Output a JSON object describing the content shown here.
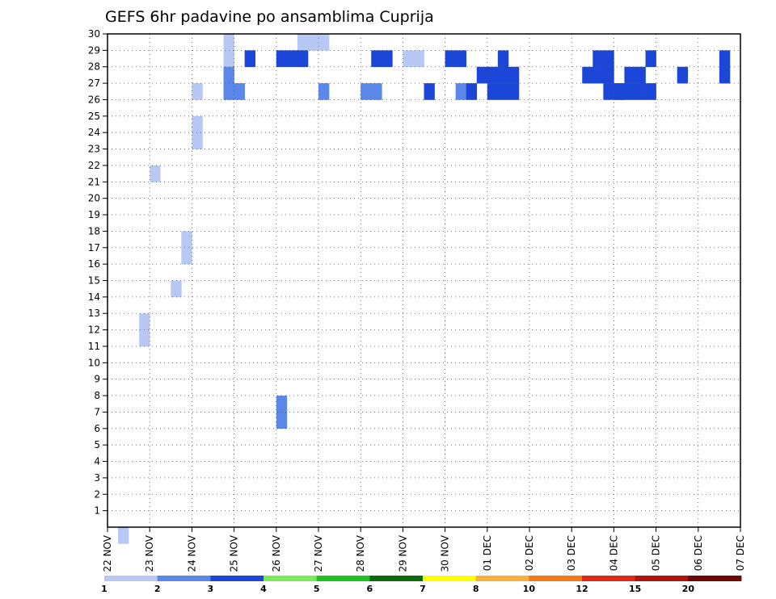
{
  "chart_data": {
    "type": "heatmap",
    "title": "GEFS 6hr padavine po ansamblima Cuprija",
    "xlabel": "",
    "ylabel": "",
    "x_tick_labels": [
      "22 NOV",
      "23 NOV",
      "24 NOV",
      "25 NOV",
      "26 NOV",
      "27 NOV",
      "28 NOV",
      "29 NOV",
      "30 NOV",
      "01 DEC",
      "02 DEC",
      "03 DEC",
      "04 DEC",
      "05 DEC",
      "06 DEC",
      "07 DEC"
    ],
    "y_tick_labels": [
      "1",
      "2",
      "3",
      "4",
      "5",
      "6",
      "7",
      "8",
      "9",
      "10",
      "11",
      "12",
      "13",
      "14",
      "15",
      "16",
      "17",
      "18",
      "19",
      "20",
      "21",
      "22",
      "23",
      "24",
      "25",
      "26",
      "27",
      "28",
      "29",
      "30"
    ],
    "x_range": [
      0,
      60
    ],
    "y_range": [
      0,
      30
    ],
    "grid": true,
    "colorbar": {
      "levels": [
        "1",
        "2",
        "3",
        "4",
        "5",
        "6",
        "7",
        "8",
        "10",
        "12",
        "15",
        "20"
      ],
      "colors": [
        "#b7c8f4",
        "#5b87e8",
        "#1c46d8",
        "#78eb5c",
        "#1fc21f",
        "#0a6b0a",
        "#ffff00",
        "#f8b03c",
        "#f57a17",
        "#de2b16",
        "#ad1410",
        "#6e0606"
      ]
    },
    "cell_unit": "6-hour step on x, ensemble member on y; value = color class index 0-11 (0 = 1-2 ... 11 = >20)",
    "cells": [
      [
        1,
        0,
        0
      ],
      [
        3,
        12,
        0
      ],
      [
        3,
        13,
        0
      ],
      [
        4,
        22,
        0
      ],
      [
        6,
        15,
        0
      ],
      [
        7,
        17,
        0
      ],
      [
        7,
        18,
        0
      ],
      [
        8,
        24,
        0
      ],
      [
        8,
        25,
        0
      ],
      [
        11,
        28,
        0
      ],
      [
        11,
        29,
        0
      ],
      [
        11,
        30,
        0
      ],
      [
        11,
        31,
        0
      ],
      [
        18,
        30,
        0
      ],
      [
        18,
        31,
        0
      ],
      [
        19,
        30,
        0
      ],
      [
        20,
        30,
        0
      ],
      [
        28,
        29,
        0
      ],
      [
        29,
        29,
        0
      ],
      [
        8,
        27,
        0
      ],
      [
        11,
        32,
        1
      ],
      [
        11,
        33,
        1
      ],
      [
        12,
        33,
        1
      ],
      [
        16,
        7,
        1
      ],
      [
        16,
        8,
        1
      ],
      [
        20,
        33,
        1
      ],
      [
        24,
        33,
        1
      ],
      [
        25,
        33,
        1
      ],
      [
        33,
        33,
        1
      ],
      [
        37,
        33,
        2
      ],
      [
        38,
        33,
        2
      ],
      [
        37,
        32,
        2
      ],
      [
        38,
        32,
        2
      ],
      [
        49,
        33,
        2
      ],
      [
        47,
        33,
        2
      ],
      [
        48,
        33,
        2
      ],
      [
        50,
        33,
        2
      ],
      [
        51,
        33,
        2
      ],
      [
        49,
        32,
        2
      ],
      [
        50,
        32,
        2
      ],
      [
        36,
        33,
        2
      ],
      [
        34,
        33,
        2
      ],
      [
        35,
        32,
        2
      ],
      [
        36,
        32,
        2
      ],
      [
        45,
        32,
        2
      ],
      [
        46,
        32,
        2
      ],
      [
        47,
        32,
        2
      ],
      [
        54,
        32,
        2
      ],
      [
        30,
        33,
        2
      ],
      [
        48,
        33,
        2
      ],
      [
        37,
        31,
        2
      ],
      [
        46,
        31,
        2
      ],
      [
        47,
        31,
        2
      ],
      [
        51,
        31,
        2
      ],
      [
        58,
        32,
        2
      ],
      [
        58,
        31,
        2
      ],
      [
        13,
        31,
        2
      ],
      [
        16,
        31,
        2
      ],
      [
        17,
        31,
        2
      ],
      [
        18,
        31,
        2
      ],
      [
        25,
        31,
        2
      ],
      [
        26,
        31,
        2
      ],
      [
        32,
        31,
        2
      ],
      [
        33,
        31,
        2
      ]
    ]
  }
}
